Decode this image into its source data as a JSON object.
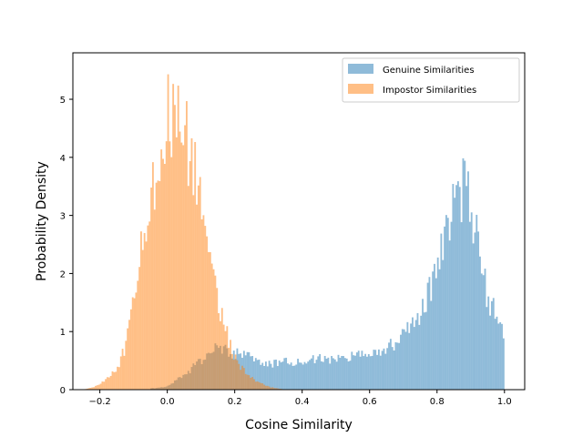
{
  "chart_data": {
    "type": "bar",
    "title": "",
    "xlabel": "Cosine Similarity",
    "ylabel": "Probability Density",
    "xlim": [
      -0.28,
      1.06
    ],
    "ylim": [
      0,
      5.8
    ],
    "x_ticks": [
      -0.2,
      0.0,
      0.2,
      0.4,
      0.6,
      0.8,
      1.0
    ],
    "x_tick_labels": [
      "−0.2",
      "0.0",
      "0.2",
      "0.4",
      "0.6",
      "0.8",
      "1.0"
    ],
    "y_ticks": [
      0,
      1,
      2,
      3,
      4,
      5
    ],
    "y_tick_labels": [
      "0",
      "1",
      "2",
      "3",
      "4",
      "5"
    ],
    "grid": false,
    "legend_position": "top-right",
    "series": [
      {
        "name": "Genuine Similarities",
        "color": "#1f77b4",
        "alpha": 0.5,
        "bin_edges_range": [
          -0.05,
          1.0
        ],
        "points": [
          [
            -0.05,
            0.02
          ],
          [
            0.0,
            0.05
          ],
          [
            0.05,
            0.25
          ],
          [
            0.1,
            0.5
          ],
          [
            0.13,
            0.65
          ],
          [
            0.15,
            0.72
          ],
          [
            0.2,
            0.62
          ],
          [
            0.25,
            0.55
          ],
          [
            0.3,
            0.45
          ],
          [
            0.35,
            0.48
          ],
          [
            0.4,
            0.5
          ],
          [
            0.45,
            0.52
          ],
          [
            0.5,
            0.55
          ],
          [
            0.55,
            0.6
          ],
          [
            0.6,
            0.62
          ],
          [
            0.65,
            0.7
          ],
          [
            0.7,
            0.9
          ],
          [
            0.75,
            1.3
          ],
          [
            0.78,
            1.7
          ],
          [
            0.8,
            2.2
          ],
          [
            0.83,
            2.8
          ],
          [
            0.86,
            3.3
          ],
          [
            0.88,
            3.5
          ],
          [
            0.9,
            3.3
          ],
          [
            0.92,
            2.6
          ],
          [
            0.95,
            1.6
          ],
          [
            0.98,
            1.2
          ],
          [
            1.0,
            1.0
          ]
        ]
      },
      {
        "name": "Impostor Similarities",
        "color": "#ff7f0e",
        "alpha": 0.5,
        "bin_edges_range": [
          -0.25,
          0.36
        ],
        "points": [
          [
            -0.25,
            0.0
          ],
          [
            -0.2,
            0.08
          ],
          [
            -0.15,
            0.35
          ],
          [
            -0.12,
            0.8
          ],
          [
            -0.1,
            1.6
          ],
          [
            -0.08,
            2.4
          ],
          [
            -0.05,
            3.4
          ],
          [
            -0.02,
            4.2
          ],
          [
            0.0,
            4.7
          ],
          [
            0.02,
            4.8
          ],
          [
            0.05,
            4.5
          ],
          [
            0.08,
            3.8
          ],
          [
            0.1,
            3.2
          ],
          [
            0.12,
            2.4
          ],
          [
            0.15,
            1.6
          ],
          [
            0.18,
            0.9
          ],
          [
            0.2,
            0.55
          ],
          [
            0.23,
            0.3
          ],
          [
            0.26,
            0.15
          ],
          [
            0.3,
            0.05
          ],
          [
            0.35,
            0.0
          ]
        ]
      }
    ]
  }
}
